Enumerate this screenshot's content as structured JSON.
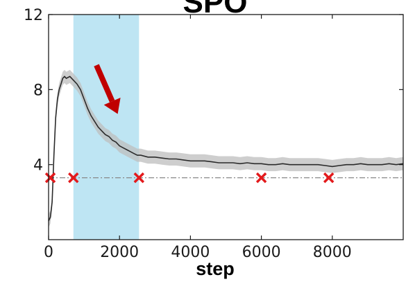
{
  "chart_data": {
    "type": "line",
    "title": "SPO",
    "xlabel": "step",
    "ylabel": "",
    "xlim": [
      0,
      10000
    ],
    "ylim": [
      0,
      12
    ],
    "x_ticks": [
      0,
      2000,
      4000,
      6000,
      8000
    ],
    "x_tick_labels": [
      "0",
      "2000",
      "4000",
      "6000",
      "8000"
    ],
    "y_ticks": [
      4,
      8,
      12
    ],
    "y_tick_labels": [
      "4",
      "8",
      "12"
    ],
    "grid": false,
    "legend": "none",
    "highlight_band": {
      "x_start": 700,
      "x_end": 2550,
      "color": "#a8dcef"
    },
    "reference_line": {
      "y": 3.3,
      "color": "#888888",
      "style": "dash-dot"
    },
    "markers": {
      "symbol": "x",
      "color": "#e31a1c",
      "x": [
        50,
        700,
        2550,
        6000,
        7900
      ],
      "y": [
        3.3,
        3.3,
        3.3,
        3.3,
        3.3
      ]
    },
    "arrow": {
      "color": "#c00000",
      "from": [
        1350,
        9.3
      ],
      "to": [
        1950,
        6.7
      ]
    },
    "series": [
      {
        "line_color": "#2a2a2a",
        "band_color": "#bdbdbd",
        "x": [
          0,
          50,
          100,
          150,
          200,
          250,
          300,
          350,
          400,
          450,
          500,
          600,
          700,
          800,
          900,
          1000,
          1100,
          1200,
          1300,
          1400,
          1500,
          1600,
          1700,
          1800,
          1900,
          2000,
          2100,
          2200,
          2300,
          2400,
          2500,
          2600,
          2800,
          3000,
          3200,
          3400,
          3600,
          3800,
          4000,
          4200,
          4400,
          4600,
          4800,
          5000,
          5200,
          5400,
          5600,
          5800,
          6000,
          6200,
          6400,
          6600,
          6800,
          7000,
          7200,
          7400,
          7600,
          7800,
          8000,
          8200,
          8400,
          8600,
          8800,
          9000,
          9200,
          9400,
          9600,
          9800,
          10000
        ],
        "y": [
          1.0,
          1.2,
          2.0,
          4.5,
          6.5,
          7.5,
          8.0,
          8.3,
          8.6,
          8.7,
          8.6,
          8.7,
          8.5,
          8.3,
          8.0,
          7.5,
          7.0,
          6.6,
          6.3,
          6.0,
          5.8,
          5.6,
          5.5,
          5.3,
          5.2,
          5.0,
          4.9,
          4.8,
          4.7,
          4.6,
          4.5,
          4.5,
          4.4,
          4.4,
          4.35,
          4.3,
          4.3,
          4.25,
          4.2,
          4.2,
          4.2,
          4.15,
          4.1,
          4.1,
          4.1,
          4.05,
          4.1,
          4.05,
          4.05,
          4.0,
          4.0,
          4.05,
          4.0,
          4.0,
          4.0,
          4.0,
          4.0,
          3.95,
          3.9,
          3.95,
          4.0,
          4.0,
          4.05,
          4.0,
          4.0,
          4.0,
          4.05,
          4.0,
          4.05
        ],
        "band_half_width": 0.35
      }
    ]
  }
}
